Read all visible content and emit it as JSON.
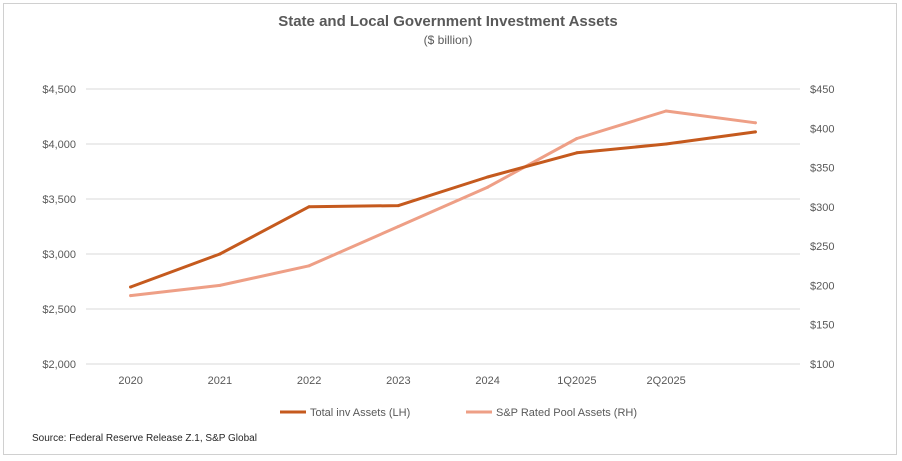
{
  "chart_data": {
    "type": "line",
    "title": "State and Local Government Investment Assets",
    "subtitle": "($ billion)",
    "categories": [
      "2020",
      "2021",
      "2022",
      "2023",
      "2024",
      "1Q2025",
      "2Q2025",
      ""
    ],
    "series": [
      {
        "name": "Total inv Assets (LH)",
        "axis": "left",
        "color": "#C55A1E",
        "values": [
          2700,
          3000,
          3430,
          3440,
          3700,
          3920,
          4000,
          4110
        ]
      },
      {
        "name": "S&P Rated Pool Assets (RH)",
        "axis": "right",
        "color": "#EE9F86",
        "values": [
          187,
          200,
          225,
          275,
          325,
          387,
          422,
          407
        ]
      }
    ],
    "left_axis": {
      "min": 2000,
      "max": 4500,
      "ticks": [
        2000,
        2500,
        3000,
        3500,
        4000,
        4500
      ],
      "tick_labels": [
        "$2,000",
        "$2,500",
        "$3,000",
        "$3,500",
        "$4,000",
        "$4,500"
      ]
    },
    "right_axis": {
      "min": 100,
      "max": 450,
      "ticks": [
        100,
        150,
        200,
        250,
        300,
        350,
        400,
        450
      ],
      "tick_labels": [
        "$100",
        "$150",
        "$200",
        "$250",
        "$300",
        "$350",
        "$400",
        "$450"
      ]
    },
    "grid": "horizontal",
    "legend_position": "bottom"
  },
  "source": "Source: Federal Reserve Release Z.1, S&P Global",
  "colors": {
    "grid": "#d9d9d9",
    "text": "#595959"
  }
}
